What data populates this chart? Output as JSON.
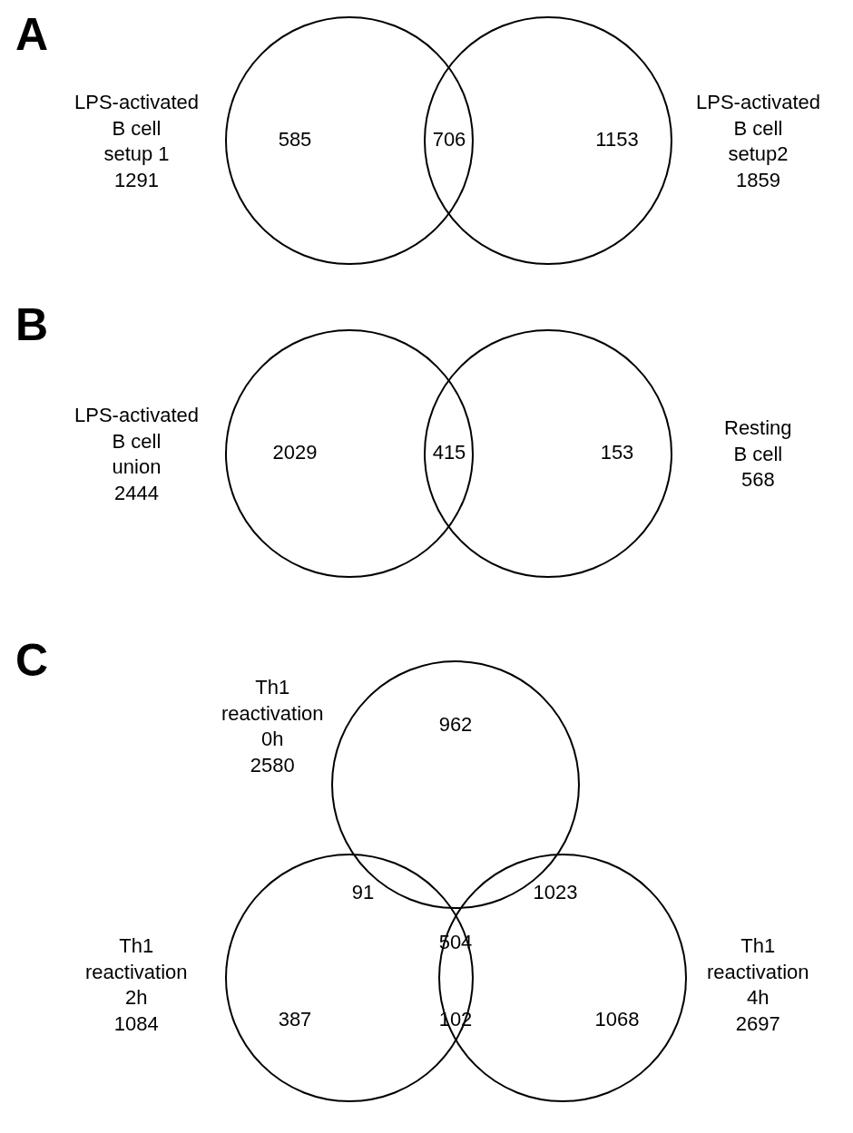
{
  "chart_data": [
    {
      "type": "other",
      "title": "A",
      "categories": [
        null,
        null,
        null
      ],
      "values": [
        585,
        706,
        1153
      ],
      "data_labels": true,
      "annotations": [
        "LPS-activated\nB cell\nsetup 1\n1291",
        "LPS-activated\nB cell\nsetup2\n1859"
      ]
    },
    {
      "type": "other",
      "title": "B",
      "categories": [
        null,
        null,
        null
      ],
      "values": [
        2029,
        415,
        153
      ],
      "data_labels": true,
      "annotations": [
        "LPS-activated\nB cell\nunion\n2444",
        "Resting\nB cell\n568"
      ]
    },
    {
      "type": "other",
      "title": "C",
      "categories": [
        null,
        null,
        null,
        null,
        null,
        null,
        null
      ],
      "values": [
        962,
        91,
        1023,
        504,
        387,
        102,
        1068
      ],
      "data_labels": true,
      "annotations": [
        "Th1\nreactivation\n0h\n2580",
        "Th1\nreactivation\n2h\n1084",
        "Th1\nreactivation\n4h\n2697"
      ]
    }
  ]
}
